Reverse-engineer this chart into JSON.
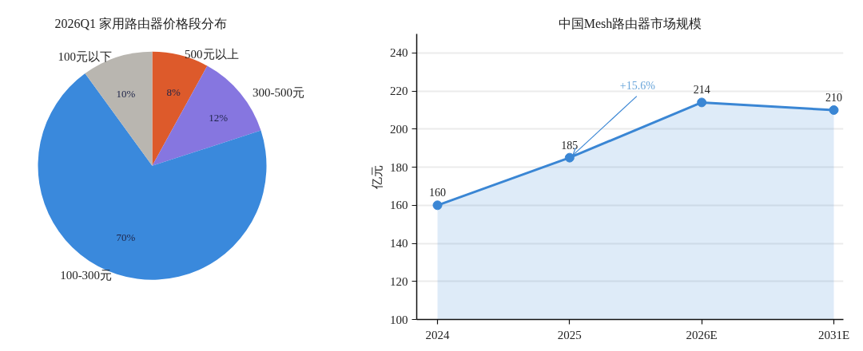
{
  "chart_data": [
    {
      "type": "pie",
      "title": "2026Q1 家用路由器价格段分布",
      "categories": [
        "500元以上",
        "300-500元",
        "100-300元",
        "100元以下"
      ],
      "values": [
        8,
        12,
        70,
        10
      ],
      "colors": [
        "#dd5a2b",
        "#8676e0",
        "#3a89dc",
        "#b9b6b0"
      ],
      "value_labels": [
        "8%",
        "12%",
        "70%",
        "10%"
      ]
    },
    {
      "type": "area",
      "title": "中国Mesh路由器市场规模",
      "ylabel": "亿元",
      "categories": [
        "2024",
        "2025",
        "2026E",
        "2031E"
      ],
      "series": [
        {
          "color": "#3a86d4",
          "values": [
            160,
            185,
            214,
            210
          ]
        }
      ],
      "ylim": [
        100,
        250
      ],
      "yticks": [
        100,
        120,
        140,
        160,
        180,
        200,
        220,
        240
      ],
      "grid": "y",
      "marker": "circle",
      "data_labels": true,
      "annotations": [
        {
          "text": "+15.6%",
          "x": "2025",
          "y": 185
        }
      ]
    }
  ]
}
